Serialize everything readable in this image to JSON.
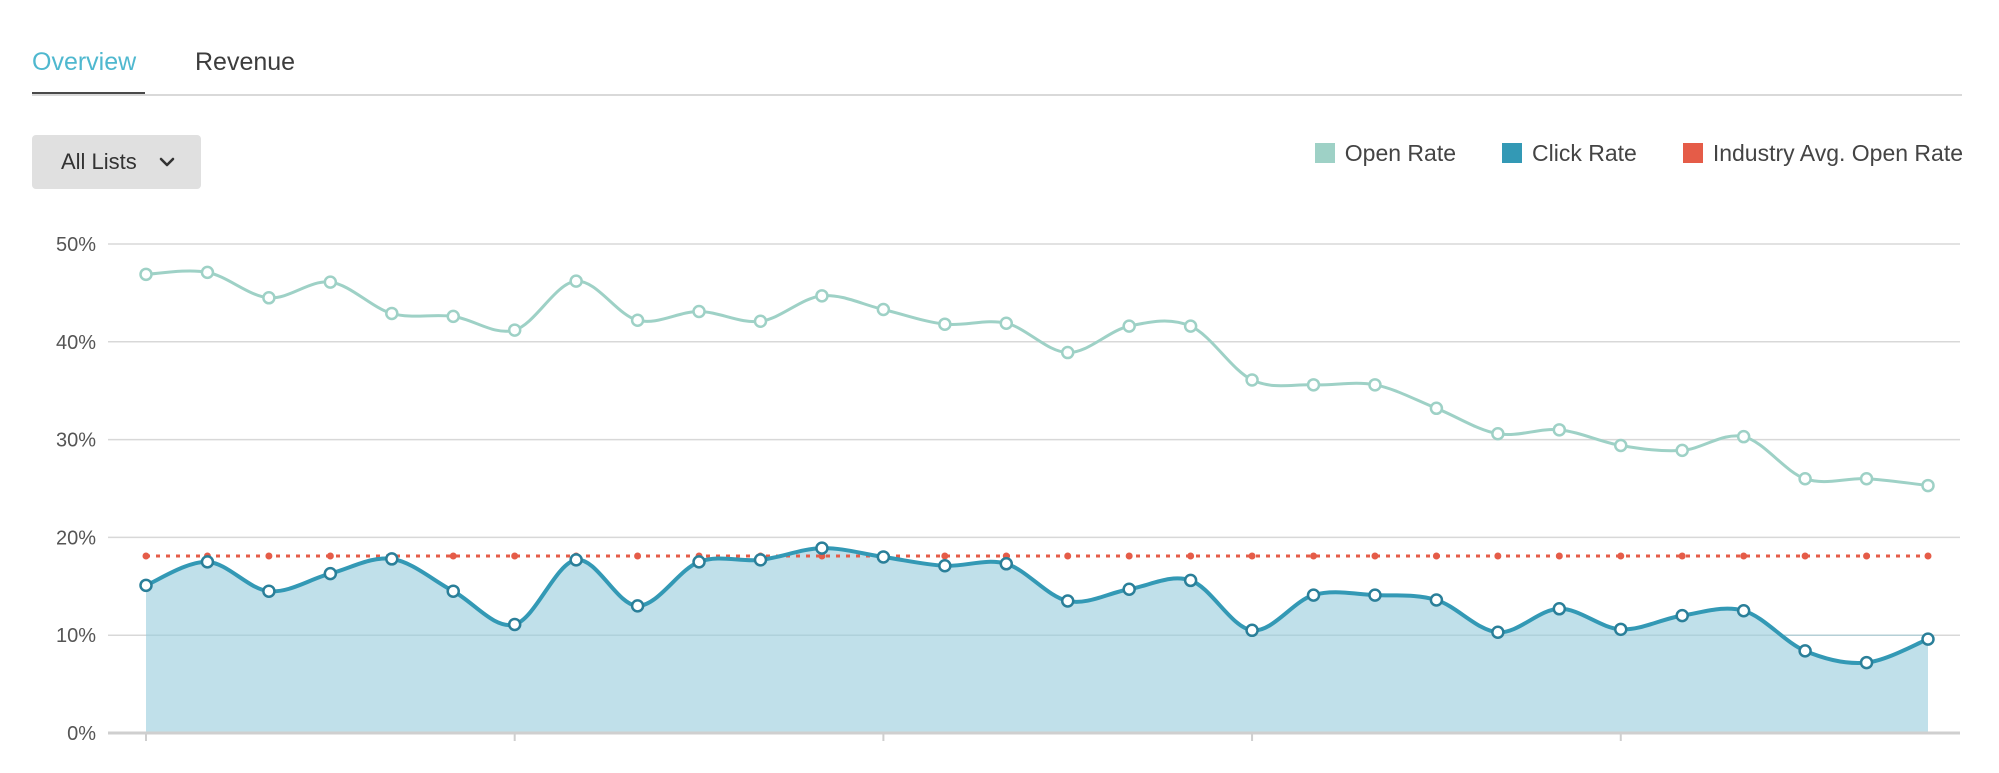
{
  "tabs": [
    {
      "label": "Overview",
      "active": true
    },
    {
      "label": "Revenue",
      "active": false
    }
  ],
  "filter": {
    "selected": "All Lists"
  },
  "chart_data": {
    "type": "line",
    "title": "",
    "xlabel": "",
    "ylabel": "",
    "ylim": [
      0,
      50
    ],
    "y_ticks": [
      "0%",
      "10%",
      "20%",
      "30%",
      "40%",
      "50%"
    ],
    "grid": true,
    "legend_position": "top-right",
    "series": [
      {
        "name": "Open Rate",
        "color": "#9ed1c6",
        "style": "line",
        "values": [
          46.9,
          47.1,
          44.5,
          46.1,
          42.9,
          42.6,
          41.2,
          46.2,
          42.2,
          43.1,
          42.1,
          44.7,
          43.3,
          41.8,
          41.9,
          38.9,
          41.6,
          41.6,
          36.1,
          35.6,
          35.6,
          33.2,
          30.6,
          31.0,
          29.4,
          28.9,
          30.3,
          26.0,
          26.0,
          25.3
        ]
      },
      {
        "name": "Click Rate",
        "color": "#3399b5",
        "style": "area",
        "values": [
          15.1,
          17.5,
          14.5,
          16.3,
          17.8,
          14.5,
          11.1,
          17.7,
          13.0,
          17.5,
          17.7,
          18.9,
          18.0,
          17.1,
          17.3,
          13.5,
          14.7,
          15.6,
          10.5,
          14.1,
          14.1,
          13.6,
          10.3,
          12.7,
          10.6,
          12.0,
          12.5,
          8.4,
          7.2,
          9.6
        ]
      },
      {
        "name": "Industry Avg. Open Rate",
        "color": "#e55c48",
        "style": "dotted",
        "values": [
          18.1,
          18.1,
          18.1,
          18.1,
          18.1,
          18.1,
          18.1,
          18.1,
          18.1,
          18.1,
          18.1,
          18.1,
          18.1,
          18.1,
          18.1,
          18.1,
          18.1,
          18.1,
          18.1,
          18.1,
          18.1,
          18.1,
          18.1,
          18.1,
          18.1,
          18.1,
          18.1,
          18.1,
          18.1,
          18.1
        ]
      }
    ]
  }
}
